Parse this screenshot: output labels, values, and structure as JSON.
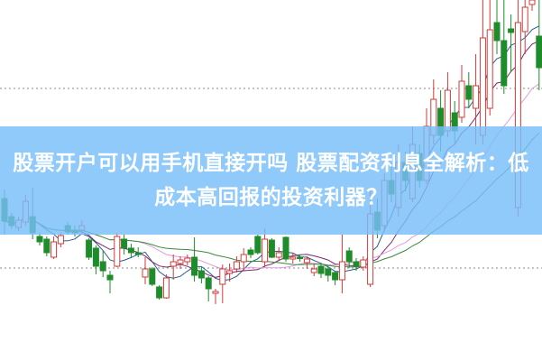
{
  "title": "股票开户可以用手机直接开吗 股票配资利息全解析：低成本高回报的投资利器？",
  "colors": {
    "up": "#d23a3a",
    "down": "#1e8c2a",
    "banner": "#78bef9",
    "grid": "#888888",
    "ma": [
      "#2a5d8c",
      "#7a2a6a",
      "#e39be0",
      "#3a8a3a"
    ]
  },
  "chart_data": {
    "type": "candlestick",
    "title": "",
    "xlabel": "",
    "ylabel": "",
    "ylim": [
      0,
      100
    ],
    "grid": "dotted horizontal",
    "gridlines": [
      75.5,
      25.75
    ],
    "moving_averages": [
      5,
      10,
      20,
      30
    ],
    "candles": [
      [
        45,
        38.75,
        47.5,
        35
      ],
      [
        40,
        37.5,
        41,
        36.5
      ],
      [
        37,
        39,
        40,
        36
      ],
      [
        38.5,
        44.25,
        46,
        37.5
      ],
      [
        40,
        35.5,
        48,
        33.75
      ],
      [
        34.5,
        33,
        35.5,
        32
      ],
      [
        33.75,
        30,
        34.5,
        29
      ],
      [
        28.75,
        33,
        34.5,
        28.25
      ],
      [
        32.5,
        34.75,
        35.5,
        31.5
      ],
      [
        37.5,
        35.75,
        38.5,
        35
      ],
      [
        36.25,
        35.5,
        37.5,
        34.5
      ],
      [
        36.25,
        37.5,
        39,
        35.5
      ],
      [
        33.5,
        28.75,
        34,
        28
      ],
      [
        31.25,
        26.25,
        32,
        24
      ],
      [
        27.5,
        25,
        30.5,
        23.25
      ],
      [
        23.75,
        22.5,
        25,
        18.75
      ],
      [
        26.25,
        34.5,
        35.5,
        26
      ],
      [
        33.75,
        31.25,
        35,
        29.5
      ],
      [
        31.25,
        30,
        32.5,
        28.5
      ],
      [
        30,
        29.5,
        31.5,
        28.75
      ],
      [
        23.25,
        25.5,
        28.75,
        21.25
      ],
      [
        25.5,
        21.25,
        26,
        20.75
      ],
      [
        20.5,
        17.5,
        21,
        17
      ],
      [
        17.5,
        23,
        24,
        17.25
      ],
      [
        26.25,
        27.5,
        29.5,
        22.5
      ],
      [
        27,
        28,
        29,
        25.5
      ],
      [
        27.5,
        28.5,
        29.5,
        26.5
      ],
      [
        28.75,
        23.75,
        34.25,
        22
      ],
      [
        25,
        23,
        26,
        21.5
      ],
      [
        23,
        20,
        23.5,
        16.5
      ],
      [
        18.75,
        19.25,
        20,
        15.75
      ],
      [
        21.25,
        25.5,
        26.75,
        16
      ],
      [
        24.25,
        25,
        27,
        22
      ],
      [
        25.5,
        27.5,
        29,
        24.5
      ],
      [
        27.5,
        29.5,
        31.25,
        25
      ],
      [
        30.75,
        29.5,
        31.5,
        28.5
      ],
      [
        34.5,
        30,
        35,
        29.5
      ],
      [
        27.5,
        33.75,
        36.75,
        26
      ],
      [
        33.5,
        28.75,
        34,
        28.5
      ],
      [
        28.75,
        30,
        31.5,
        28
      ],
      [
        34.25,
        28.25,
        34.5,
        27.5
      ],
      [
        28.25,
        28.75,
        30,
        27
      ],
      [
        28.75,
        28.5,
        29.5,
        27.5
      ],
      [
        27.25,
        28.25,
        29,
        25.5
      ],
      [
        24.5,
        25.5,
        27,
        23.5
      ],
      [
        26.25,
        24.25,
        27,
        23
      ],
      [
        25.5,
        23.75,
        26.5,
        22
      ],
      [
        24.5,
        22.5,
        25,
        21
      ],
      [
        22.5,
        27.5,
        35,
        18.75
      ],
      [
        30.5,
        27.5,
        31.5,
        25.75
      ],
      [
        27.5,
        26.25,
        28.5,
        25
      ],
      [
        26,
        28,
        29,
        25
      ],
      [
        21.25,
        40.75,
        48,
        20.5
      ],
      [
        41.25,
        36.25,
        45,
        34
      ],
      [
        37.5,
        50,
        52,
        36
      ],
      [
        50,
        46.25,
        55,
        44
      ],
      [
        42.5,
        55,
        60,
        40
      ],
      [
        55,
        50,
        58,
        47
      ],
      [
        45,
        60,
        65,
        44
      ],
      [
        57.5,
        50,
        60,
        48
      ],
      [
        50,
        65,
        70,
        49
      ],
      [
        62.5,
        72.5,
        78,
        60
      ],
      [
        70,
        62.5,
        75,
        58
      ],
      [
        63.75,
        75,
        80,
        62
      ],
      [
        68.75,
        63.75,
        72,
        60
      ],
      [
        67.5,
        77.5,
        82,
        66
      ],
      [
        76.25,
        72.5,
        80,
        70
      ],
      [
        70,
        76.25,
        85,
        60
      ],
      [
        62.5,
        89.5,
        100,
        60
      ],
      [
        70,
        91.75,
        100,
        68
      ],
      [
        93.75,
        88.75,
        100,
        85
      ],
      [
        88.75,
        76.25,
        100,
        74
      ],
      [
        92,
        91,
        96,
        80
      ],
      [
        42.5,
        93.75,
        100,
        40
      ],
      [
        91.25,
        98,
        100,
        85
      ],
      [
        98.75,
        100,
        100,
        97
      ],
      [
        90,
        81.25,
        100,
        75
      ]
    ]
  }
}
